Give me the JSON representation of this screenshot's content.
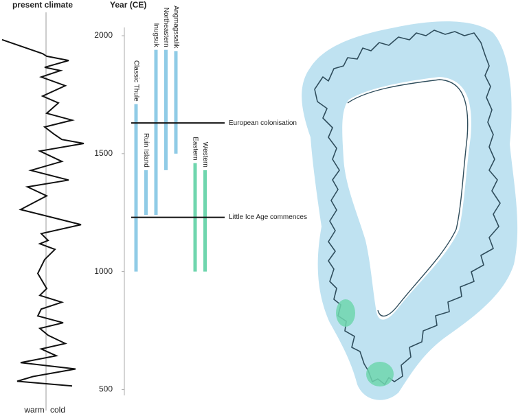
{
  "chart_data": [
    {
      "type": "line",
      "title": "present climate",
      "annotations": [
        "warm",
        "cold"
      ],
      "xlim": [
        -67,
        60
      ],
      "ylim": [
        475,
        2035
      ],
      "series": [
        {
          "color": "#111111",
          "x": [
            -64,
            -5,
            1,
            33,
            -2,
            21,
            -7,
            28,
            -5,
            18,
            1,
            38,
            -2,
            11,
            23,
            55,
            -9,
            23,
            -22,
            33,
            -27,
            1,
            -37,
            51,
            -7,
            3,
            -9,
            13,
            -2,
            -12,
            1,
            -9,
            23,
            -7,
            -12,
            25,
            -9,
            3,
            28,
            -7,
            15,
            -37,
            43,
            -19,
            -42,
            38
          ],
          "values": [
            1983,
            1924,
            1913,
            1895,
            1866,
            1852,
            1825,
            1788,
            1744,
            1715,
            1671,
            1642,
            1613,
            1584,
            1560,
            1543,
            1511,
            1467,
            1429,
            1388,
            1359,
            1321,
            1263,
            1199,
            1161,
            1132,
            1118,
            1094,
            1051,
            992,
            928,
            899,
            870,
            841,
            812,
            783,
            759,
            730,
            695,
            672,
            643,
            614,
            587,
            555,
            535,
            515
          ]
        }
      ]
    },
    {
      "type": "range-bar",
      "y_label": "Year (CE)",
      "ylim": [
        475,
        2035
      ],
      "yticks": [
        500,
        1000,
        1500,
        2000
      ],
      "series": [
        {
          "name": "Classic Thule",
          "color": "#8fcbe6",
          "start": 1000,
          "end": 1710
        },
        {
          "name": "Ruin Island",
          "color": "#8fcbe6",
          "start": 1240,
          "end": 1430
        },
        {
          "name": "Inugsuk",
          "color": "#8fcbe6",
          "start": 1240,
          "end": 1940
        },
        {
          "name": "Northeastern",
          "color": "#8fcbe6",
          "start": 1430,
          "end": 1940
        },
        {
          "name": "Angmagssalik",
          "color": "#8fcbe6",
          "start": 1500,
          "end": 1935
        },
        {
          "name": "Eastern",
          "color": "#6fd6ae",
          "start": 1000,
          "end": 1460
        },
        {
          "name": "Western",
          "color": "#6fd6ae",
          "start": 1000,
          "end": 1430
        }
      ],
      "events": [
        {
          "label": "European colonisation",
          "year": 1630
        },
        {
          "label": "Little Ice Age commences",
          "year": 1230
        }
      ]
    }
  ]
}
